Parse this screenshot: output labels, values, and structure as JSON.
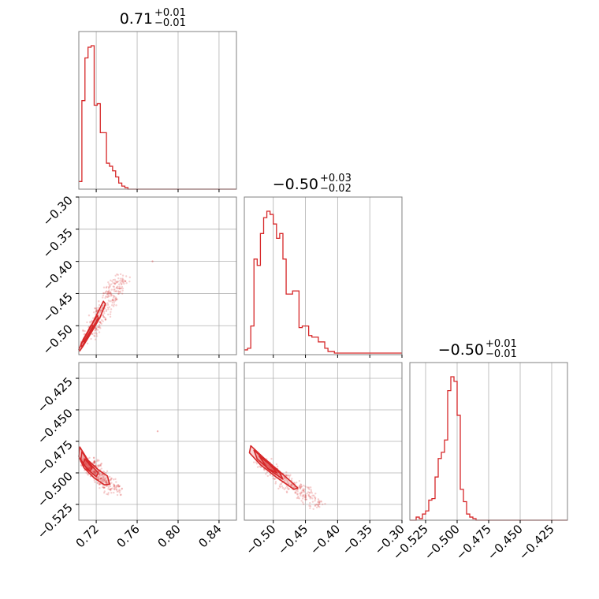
{
  "chart_data": {
    "type": "corner",
    "color": "#d62728",
    "grid": true,
    "parameters": [
      {
        "title": {
          "median": "0.71",
          "plus": "+0.01",
          "minus": "−0.01"
        },
        "ticks": [
          {
            "value": 0.72,
            "label": "0.72"
          },
          {
            "value": 0.76,
            "label": "0.76"
          },
          {
            "value": 0.8,
            "label": "0.80"
          },
          {
            "value": 0.84,
            "label": "0.84"
          }
        ],
        "range": [
          0.703,
          0.857
        ]
      },
      {
        "title": {
          "median": "−0.50",
          "plus": "+0.03",
          "minus": "−0.02"
        },
        "ticks": [
          {
            "value": -0.5,
            "label": "−0.50"
          },
          {
            "value": -0.45,
            "label": "−0.45"
          },
          {
            "value": -0.4,
            "label": "−0.40"
          },
          {
            "value": -0.35,
            "label": "−0.35"
          },
          {
            "value": -0.3,
            "label": "−0.30"
          }
        ],
        "range": [
          -0.545,
          -0.3
        ]
      },
      {
        "title": {
          "median": "−0.50",
          "plus": "+0.01",
          "minus": "−0.01"
        },
        "ticks": [
          {
            "value": -0.525,
            "label": "−0.525"
          },
          {
            "value": -0.5,
            "label": "−0.500"
          },
          {
            "value": -0.475,
            "label": "−0.475"
          },
          {
            "value": -0.45,
            "label": "−0.450"
          },
          {
            "value": -0.425,
            "label": "−0.425"
          }
        ],
        "range": [
          -0.5375,
          -0.4125
        ]
      }
    ],
    "histograms": [
      {
        "param": 0,
        "bin_edges": [
          0.703,
          0.706,
          0.709,
          0.712,
          0.715,
          0.718,
          0.721,
          0.724,
          0.727,
          0.73,
          0.733,
          0.736,
          0.739,
          0.742,
          0.745,
          0.748,
          0.751,
          0.754,
          0.757,
          0.76,
          0.857
        ],
        "counts": [
          5,
          58,
          86,
          93,
          94,
          55,
          56,
          37,
          37,
          17,
          15,
          12,
          8,
          4,
          2,
          1,
          0,
          0,
          0,
          0,
          0
        ]
      },
      {
        "param": 1,
        "bin_edges": [
          -0.545,
          -0.54,
          -0.535,
          -0.53,
          -0.525,
          -0.52,
          -0.515,
          -0.51,
          -0.505,
          -0.5,
          -0.495,
          -0.49,
          -0.485,
          -0.48,
          -0.475,
          -0.47,
          -0.465,
          -0.46,
          -0.455,
          -0.45,
          -0.445,
          -0.44,
          -0.435,
          -0.43,
          -0.425,
          -0.42,
          -0.415,
          -0.41,
          -0.405,
          -0.4,
          -0.3
        ],
        "counts": [
          3,
          4,
          18,
          60,
          56,
          76,
          86,
          90,
          88,
          82,
          73,
          76,
          60,
          38,
          38,
          40,
          40,
          17,
          18,
          18,
          12,
          11,
          11,
          8,
          8,
          4,
          2,
          2,
          1,
          1
        ]
      },
      {
        "param": 2,
        "bin_edges": [
          -0.5375,
          -0.5325,
          -0.53,
          -0.5275,
          -0.525,
          -0.5225,
          -0.52,
          -0.5175,
          -0.515,
          -0.5125,
          -0.51,
          -0.5075,
          -0.505,
          -0.5025,
          -0.5,
          -0.4975,
          -0.495,
          -0.4925,
          -0.49,
          -0.4875,
          -0.485,
          -0.4825,
          -0.4125
        ],
        "counts": [
          0,
          2,
          1,
          4,
          6,
          13,
          14,
          28,
          40,
          44,
          52,
          84,
          93,
          90,
          68,
          20,
          12,
          4,
          2,
          1,
          0,
          0
        ]
      }
    ],
    "contour_panels": [
      {
        "x_param": 0,
        "y_param": 1,
        "levels": [
          [
            [
              0.704,
              -0.539
            ],
            [
              0.707,
              -0.532
            ],
            [
              0.712,
              -0.519
            ],
            [
              0.718,
              -0.503
            ],
            [
              0.724,
              -0.486
            ],
            [
              0.729,
              -0.466
            ],
            [
              0.727,
              -0.462
            ],
            [
              0.722,
              -0.478
            ],
            [
              0.716,
              -0.497
            ],
            [
              0.71,
              -0.515
            ],
            [
              0.705,
              -0.53
            ],
            [
              0.703,
              -0.537
            ]
          ],
          [
            [
              0.706,
              -0.533
            ],
            [
              0.71,
              -0.522
            ],
            [
              0.716,
              -0.505
            ],
            [
              0.722,
              -0.488
            ],
            [
              0.721,
              -0.484
            ],
            [
              0.715,
              -0.5
            ],
            [
              0.709,
              -0.517
            ],
            [
              0.705,
              -0.529
            ]
          ],
          [
            [
              0.708,
              -0.525
            ],
            [
              0.713,
              -0.512
            ],
            [
              0.717,
              -0.5
            ],
            [
              0.715,
              -0.499
            ],
            [
              0.711,
              -0.511
            ],
            [
              0.707,
              -0.522
            ]
          ]
        ],
        "scatter_center": [
          [
            0.712,
            -0.52
          ],
          [
            0.725,
            -0.48
          ],
          [
            0.735,
            -0.45
          ],
          [
            0.745,
            -0.425
          ]
        ],
        "outliers": [
          [
            0.775,
            -0.4
          ]
        ]
      },
      {
        "x_param": 0,
        "y_param": 2,
        "levels": [
          [
            [
              0.704,
              -0.4795
            ],
            [
              0.712,
              -0.49
            ],
            [
              0.722,
              -0.4975
            ],
            [
              0.731,
              -0.5025
            ],
            [
              0.733,
              -0.509
            ],
            [
              0.728,
              -0.5095
            ],
            [
              0.718,
              -0.504
            ],
            [
              0.708,
              -0.496
            ],
            [
              0.703,
              -0.487
            ]
          ],
          [
            [
              0.706,
              -0.483
            ],
            [
              0.713,
              -0.492
            ],
            [
              0.722,
              -0.5
            ],
            [
              0.72,
              -0.503
            ],
            [
              0.711,
              -0.497
            ],
            [
              0.705,
              -0.4895
            ]
          ],
          [
            [
              0.709,
              -0.489
            ],
            [
              0.716,
              -0.496
            ],
            [
              0.714,
              -0.4985
            ],
            [
              0.707,
              -0.493
            ]
          ]
        ],
        "scatter_center": [
          [
            0.71,
            -0.49
          ],
          [
            0.72,
            -0.5
          ],
          [
            0.73,
            -0.508
          ],
          [
            0.74,
            -0.515
          ]
        ],
        "outliers": [
          [
            0.78,
            -0.467
          ]
        ]
      },
      {
        "x_param": 1,
        "y_param": 2,
        "levels": [
          [
            [
              -0.535,
              -0.4785
            ],
            [
              -0.515,
              -0.488
            ],
            [
              -0.49,
              -0.499
            ],
            [
              -0.47,
              -0.508
            ],
            [
              -0.462,
              -0.512
            ],
            [
              -0.468,
              -0.513
            ],
            [
              -0.495,
              -0.5035
            ],
            [
              -0.52,
              -0.4935
            ],
            [
              -0.537,
              -0.484
            ]
          ],
          [
            [
              -0.53,
              -0.482
            ],
            [
              -0.51,
              -0.491
            ],
            [
              -0.49,
              -0.5
            ],
            [
              -0.485,
              -0.505
            ],
            [
              -0.505,
              -0.498
            ],
            [
              -0.525,
              -0.489
            ]
          ],
          [
            [
              -0.522,
              -0.4865
            ],
            [
              -0.505,
              -0.4935
            ],
            [
              -0.494,
              -0.5
            ],
            [
              -0.509,
              -0.4965
            ]
          ]
        ],
        "scatter_center": [
          [
            -0.52,
            -0.49
          ],
          [
            -0.5,
            -0.5
          ],
          [
            -0.48,
            -0.508
          ],
          [
            -0.455,
            -0.515
          ],
          [
            -0.43,
            -0.525
          ]
        ],
        "outliers": []
      }
    ]
  }
}
